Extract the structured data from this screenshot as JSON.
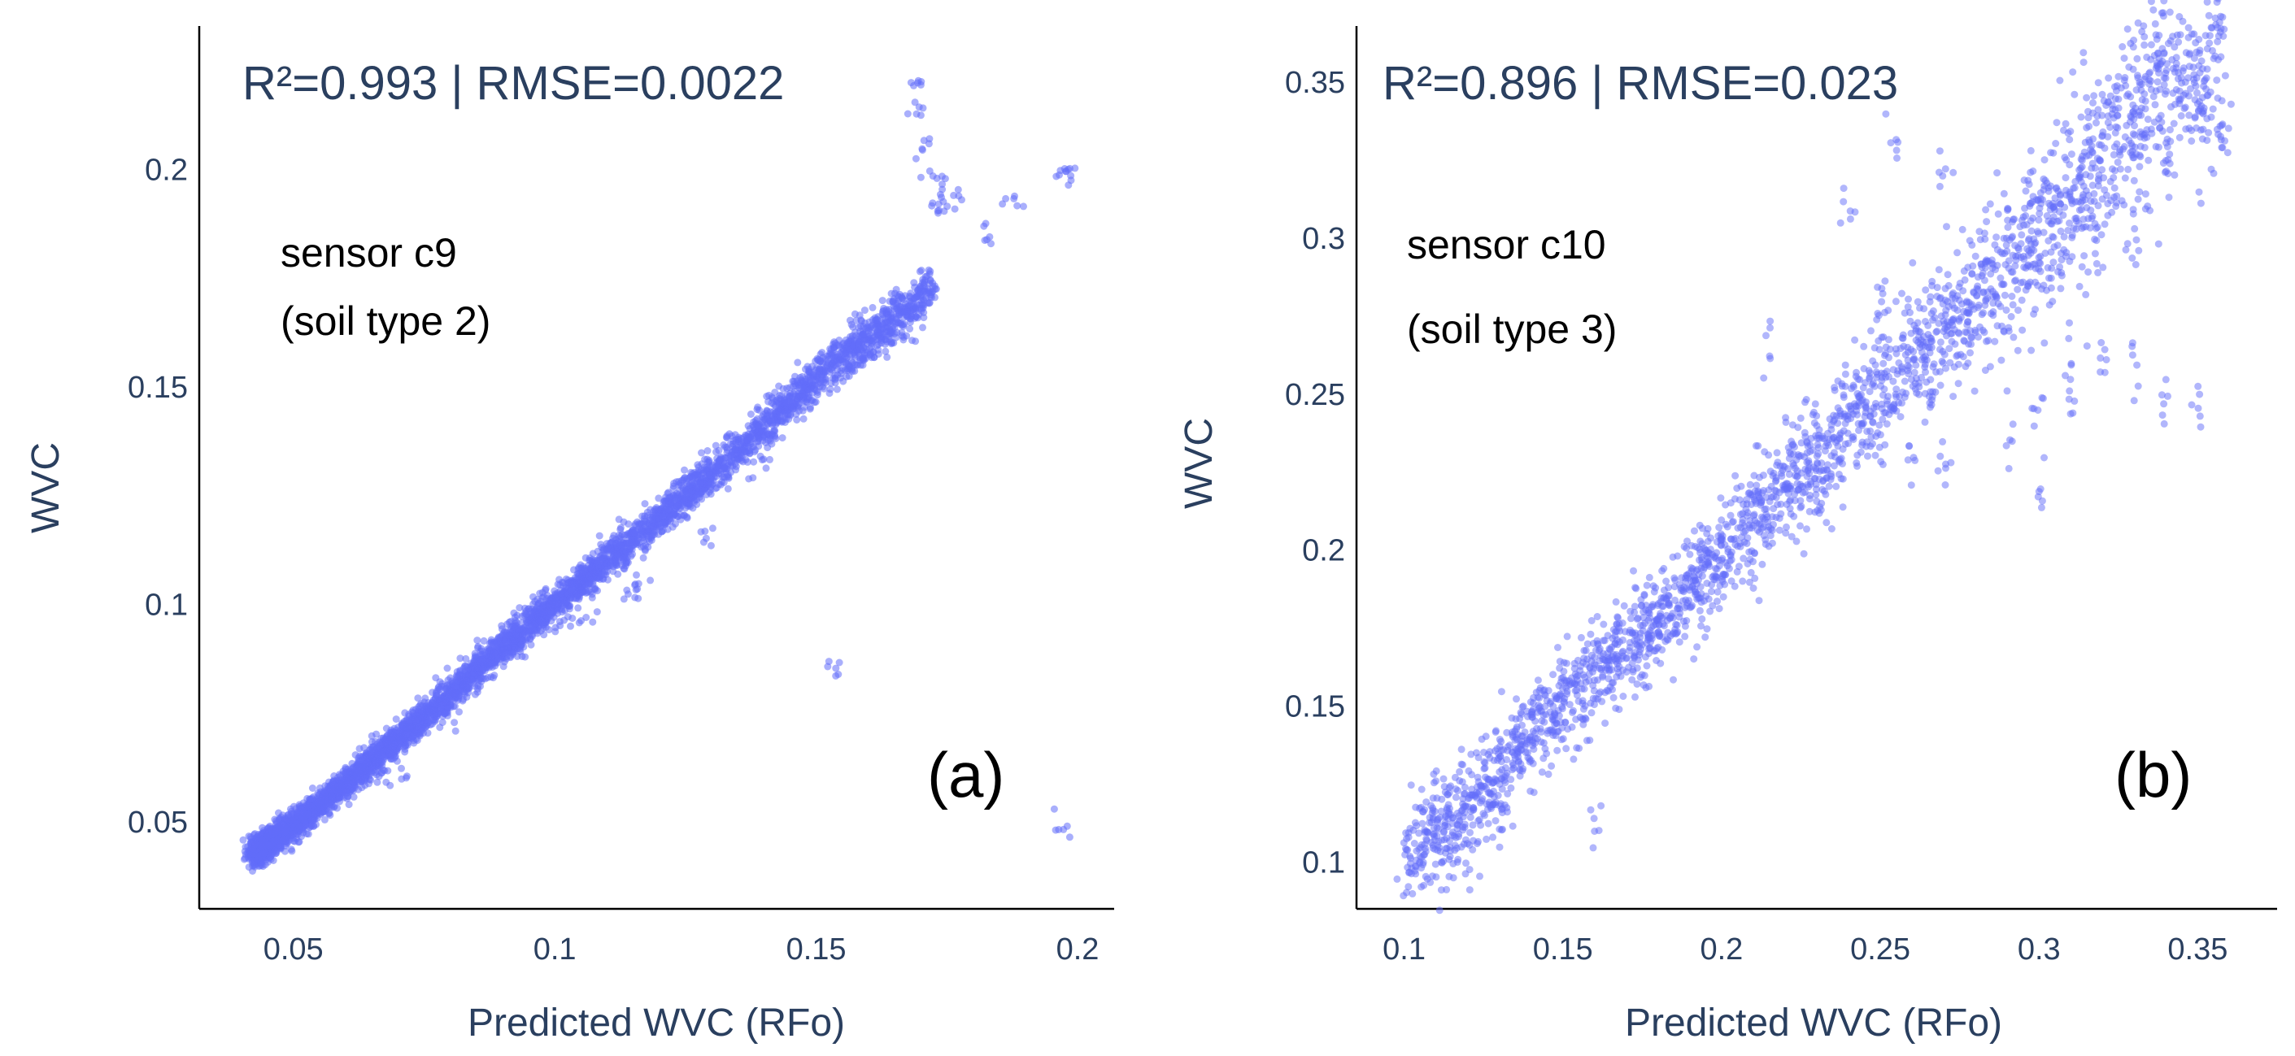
{
  "chart_data": [
    {
      "type": "scatter",
      "panel_label": "(a)",
      "stats_text": "R²=0.993 | RMSE=0.0022",
      "annotation": [
        "sensor c9",
        "(soil type 2)"
      ],
      "xlabel": "Predicted WVC (RFo)",
      "ylabel": "WVC",
      "xlim": [
        0.032,
        0.207
      ],
      "ylim": [
        0.03,
        0.233
      ],
      "xticks": [
        0.05,
        0.1,
        0.15,
        0.2
      ],
      "xtick_labels": [
        "0.05",
        "0.1",
        "0.15",
        "0.2"
      ],
      "yticks": [
        0.05,
        0.1,
        0.15,
        0.2
      ],
      "ytick_labels": [
        "0.05",
        "0.1",
        "0.15",
        "0.2"
      ],
      "marker_color": "#636efa",
      "series": [
        {
          "name": "sensor c9",
          "trend": [
            [
              0.043,
              0.043
            ],
            [
              0.05,
              0.049
            ],
            [
              0.07,
              0.069
            ],
            [
              0.09,
              0.09
            ],
            [
              0.11,
              0.11
            ],
            [
              0.13,
              0.13
            ],
            [
              0.15,
              0.152
            ],
            [
              0.165,
              0.166
            ],
            [
              0.172,
              0.172
            ]
          ],
          "outliers": [
            [
              0.17,
              0.22
            ],
            [
              0.169,
              0.213
            ],
            [
              0.171,
              0.205
            ],
            [
              0.172,
              0.198
            ],
            [
              0.173,
              0.19
            ],
            [
              0.175,
              0.195
            ],
            [
              0.176,
              0.193
            ],
            [
              0.198,
              0.2
            ],
            [
              0.197,
              0.198
            ],
            [
              0.188,
              0.193
            ],
            [
              0.182,
              0.186
            ],
            [
              0.154,
              0.085
            ],
            [
              0.197,
              0.049
            ],
            [
              0.158,
              0.155
            ],
            [
              0.162,
              0.16
            ],
            [
              0.168,
              0.163
            ],
            [
              0.128,
              0.115
            ],
            [
              0.14,
              0.132
            ],
            [
              0.1,
              0.095
            ],
            [
              0.105,
              0.097
            ],
            [
              0.115,
              0.103
            ],
            [
              0.116,
              0.105
            ],
            [
              0.07,
              0.06
            ],
            [
              0.08,
              0.073
            ]
          ]
        }
      ]
    },
    {
      "type": "scatter",
      "panel_label": "(b)",
      "stats_text": "R²=0.896 | RMSE=0.023",
      "annotation": [
        "sensor c10",
        "(soil type 3)"
      ],
      "xlabel": "Predicted WVC (RFo)",
      "ylabel": "WVC",
      "xlim": [
        0.085,
        0.375
      ],
      "ylim": [
        0.085,
        0.368
      ],
      "xticks": [
        0.1,
        0.15,
        0.2,
        0.25,
        0.3,
        0.35
      ],
      "xtick_labels": [
        "0.1",
        "0.15",
        "0.2",
        "0.25",
        "0.3",
        "0.35"
      ],
      "yticks": [
        0.1,
        0.15,
        0.2,
        0.25,
        0.3,
        0.35
      ],
      "ytick_labels": [
        "0.1",
        "0.15",
        "0.2",
        "0.25",
        "0.3",
        "0.35"
      ],
      "marker_color": "#636efa",
      "series": [
        {
          "name": "sensor c10",
          "trend": [
            [
              0.1,
              0.1
            ],
            [
              0.125,
              0.122
            ],
            [
              0.14,
              0.142
            ],
            [
              0.16,
              0.16
            ],
            [
              0.18,
              0.178
            ],
            [
              0.2,
              0.198
            ],
            [
              0.22,
              0.22
            ],
            [
              0.24,
              0.24
            ],
            [
              0.26,
              0.26
            ],
            [
              0.28,
              0.28
            ],
            [
              0.3,
              0.3
            ],
            [
              0.32,
              0.325
            ],
            [
              0.34,
              0.35
            ],
            [
              0.36,
              0.357
            ]
          ],
          "outliers": [
            [
              0.31,
              0.265
            ],
            [
              0.32,
              0.262
            ],
            [
              0.33,
              0.255
            ],
            [
              0.34,
              0.25
            ],
            [
              0.31,
              0.25
            ],
            [
              0.3,
              0.245
            ],
            [
              0.35,
              0.245
            ],
            [
              0.29,
              0.24
            ],
            [
              0.27,
              0.32
            ],
            [
              0.255,
              0.33
            ],
            [
              0.25,
              0.28
            ],
            [
              0.24,
              0.31
            ],
            [
              0.35,
              0.345
            ],
            [
              0.34,
              0.32
            ],
            [
              0.33,
              0.3
            ],
            [
              0.215,
              0.265
            ],
            [
              0.26,
              0.23
            ],
            [
              0.27,
              0.225
            ],
            [
              0.3,
              0.22
            ],
            [
              0.23,
              0.213
            ],
            [
              0.16,
              0.112
            ],
            [
              0.115,
              0.105
            ],
            [
              0.13,
              0.11
            ],
            [
              0.28,
              0.29
            ]
          ]
        }
      ]
    }
  ]
}
